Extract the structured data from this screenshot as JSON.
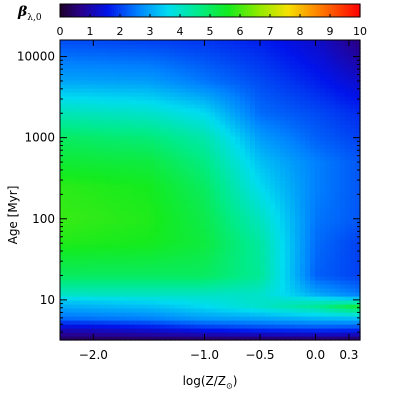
{
  "chart_data": {
    "type": "heatmap",
    "colorbar": {
      "title_symbol": "β",
      "title_subscript": "λ,0",
      "range": [
        0,
        10
      ],
      "ticks": [
        0,
        1,
        2,
        3,
        4,
        5,
        6,
        7,
        8,
        9,
        10
      ]
    },
    "xlabel_main": "log(Z/Z",
    "xlabel_subscript": "⊙",
    "xlabel_close": ")",
    "ylabel": "Age [Myr]",
    "x_ticks": [
      {
        "value": -2.0,
        "label": "−2.0"
      },
      {
        "value": -1.0,
        "label": "−1.0"
      },
      {
        "value": -0.5,
        "label": "−0.5"
      },
      {
        "value": 0.0,
        "label": "0.0"
      },
      {
        "value": 0.3,
        "label": "0.3"
      }
    ],
    "y_ticks": [
      {
        "value": 10,
        "label": "10"
      },
      {
        "value": 100,
        "label": "100"
      },
      {
        "value": 1000,
        "label": "1000"
      },
      {
        "value": 10000,
        "label": "10000"
      }
    ],
    "xlim": [
      -2.3,
      0.4
    ],
    "ylim": [
      3.2,
      16000
    ],
    "y_scale": "log",
    "x_grid": [
      -2.3,
      -1.5,
      -1.0,
      -0.5,
      0.0,
      0.4
    ],
    "y_grid": [
      3.2,
      4.5,
      6,
      8.5,
      10,
      12,
      20,
      50,
      100,
      250,
      500,
      1000,
      2000,
      5000,
      16000
    ],
    "z_values": [
      [
        0.3,
        0.3,
        0.3,
        0.3,
        0.3,
        0.3
      ],
      [
        1.2,
        1.5,
        1.8,
        2.0,
        2.1,
        2.0
      ],
      [
        2.4,
        2.6,
        2.9,
        3.0,
        3.2,
        3.3
      ],
      [
        3.1,
        3.3,
        3.6,
        4.0,
        4.5,
        5.4
      ],
      [
        3.4,
        3.6,
        3.8,
        4.0,
        3.9,
        3.6
      ],
      [
        4.1,
        4.1,
        4.1,
        4.0,
        3.0,
        2.5
      ],
      [
        5.0,
        5.0,
        5.0,
        4.5,
        2.3,
        2.0
      ],
      [
        5.7,
        5.6,
        5.3,
        4.4,
        2.4,
        2.0
      ],
      [
        5.9,
        5.7,
        5.2,
        4.1,
        2.5,
        2.2
      ],
      [
        5.8,
        5.6,
        5.0,
        3.6,
        2.6,
        2.2
      ],
      [
        5.4,
        5.3,
        4.7,
        3.3,
        2.6,
        2.2
      ],
      [
        5.0,
        4.8,
        4.3,
        2.9,
        2.3,
        2.0
      ],
      [
        4.2,
        4.0,
        3.6,
        2.4,
        2.1,
        1.8
      ],
      [
        3.0,
        2.9,
        2.5,
        2.1,
        1.7,
        1.3
      ],
      [
        2.1,
        2.0,
        1.9,
        1.7,
        1.3,
        0.6
      ]
    ]
  }
}
